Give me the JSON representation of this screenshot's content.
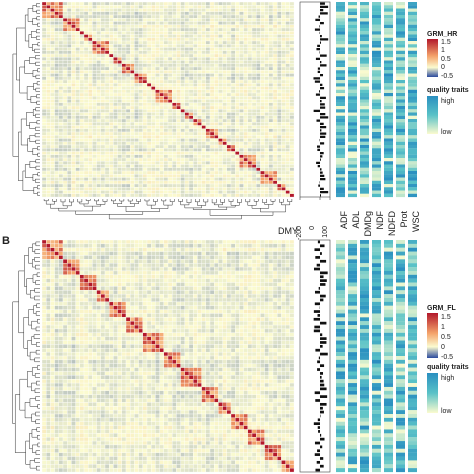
{
  "panels": [
    {
      "id": "A",
      "label": "",
      "legend_title": "GRM_HR",
      "legend_ticks": [
        "1.5",
        "1",
        "0.5",
        "0",
        "-0.5"
      ],
      "quality_title": "quality traits",
      "quality_high": "high",
      "quality_low": "low"
    },
    {
      "id": "B",
      "label": "B",
      "legend_title": "GRM_FL",
      "legend_ticks": [
        "1.5",
        "1",
        "0.5",
        "0",
        "-0.5"
      ],
      "quality_title": "quality traits",
      "quality_high": "high",
      "quality_low": "low"
    }
  ],
  "dmy_axis": {
    "label": "DMY",
    "ticks": [
      "-200",
      "0",
      "100"
    ]
  },
  "trait_labels": [
    "ADF",
    "ADL",
    "DMDg",
    "NDF",
    "NDFD",
    "Prot",
    "WSC"
  ],
  "colors": {
    "grm_low": "#2b4a9e",
    "grm_mid": "#fbfbd0",
    "grm_high": "#b2182b",
    "trait_low": "#fbfbcf",
    "trait_mid": "#59c2c7",
    "trait_high": "#2a8fc0",
    "bar": "#111111"
  },
  "chart_data": [
    {
      "type": "heatmap",
      "title": "",
      "legend_name": "GRM_HR",
      "value_range": [
        -0.5,
        1.5
      ],
      "n_genotypes": 60,
      "diagonal": 1.0,
      "side_bars": {
        "label": "DMY",
        "range": [
          -200,
          100
        ]
      },
      "trait_columns": [
        "ADF",
        "ADL",
        "DMDg",
        "NDF",
        "NDFD",
        "Prot",
        "WSC"
      ]
    },
    {
      "type": "heatmap",
      "title": "",
      "legend_name": "GRM_FL",
      "value_range": [
        -0.5,
        1.5
      ],
      "n_genotypes": 60,
      "diagonal": 1.0,
      "side_bars": {
        "label": "DMY",
        "range": [
          -200,
          100
        ]
      },
      "trait_columns": [
        "ADF",
        "ADL",
        "DMDg",
        "NDF",
        "NDFD",
        "Prot",
        "WSC"
      ]
    }
  ]
}
